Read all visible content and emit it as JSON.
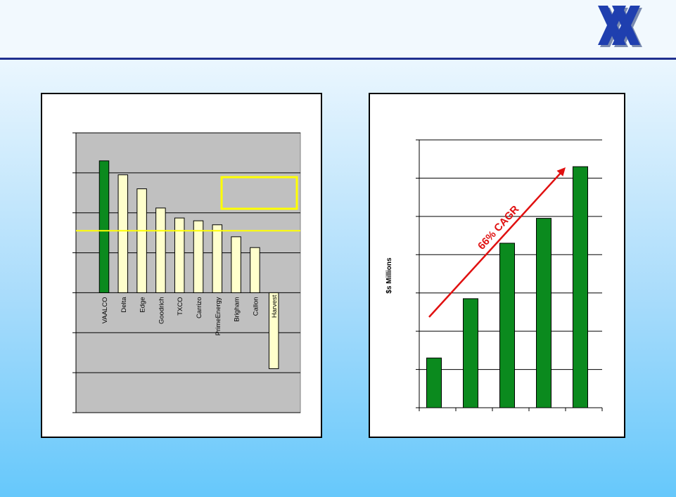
{
  "logo": {
    "icon": "double-x-logo-icon",
    "color": "#1f3faf"
  },
  "chart_data": [
    {
      "type": "bar",
      "categories": [
        "VAALCO",
        "Delta",
        "Edge",
        "Goodrich",
        "TXCO",
        "Carrizo",
        "PrimeEnergy",
        "Brigham",
        "Callon",
        "Harvest"
      ],
      "values": [
        3.3,
        2.95,
        2.6,
        2.12,
        1.87,
        1.8,
        1.7,
        1.4,
        1.13,
        -1.9
      ],
      "ylim": [
        -3,
        4
      ],
      "ticks": [
        -3,
        -2,
        -1,
        0,
        1,
        2,
        3,
        4
      ],
      "reference_line": 1.55,
      "highlight_box": true,
      "bar_colors": {
        "VAALCO": "#0b8a1e",
        "default": "#ffffcc"
      },
      "grid": true,
      "background": "#c0c0c0"
    },
    {
      "type": "bar",
      "categories": [
        "",
        "",
        "",
        "",
        ""
      ],
      "values": [
        1.3,
        2.85,
        4.3,
        4.95,
        6.3
      ],
      "ylim": [
        0,
        7
      ],
      "ticks": [
        0,
        1,
        2,
        3,
        4,
        5,
        6,
        7
      ],
      "ylabel": "$s Millions",
      "annotation": "66% CAGR",
      "bar_color": "#0b8a1e",
      "arrow_color": "#e01010",
      "grid": true
    }
  ]
}
